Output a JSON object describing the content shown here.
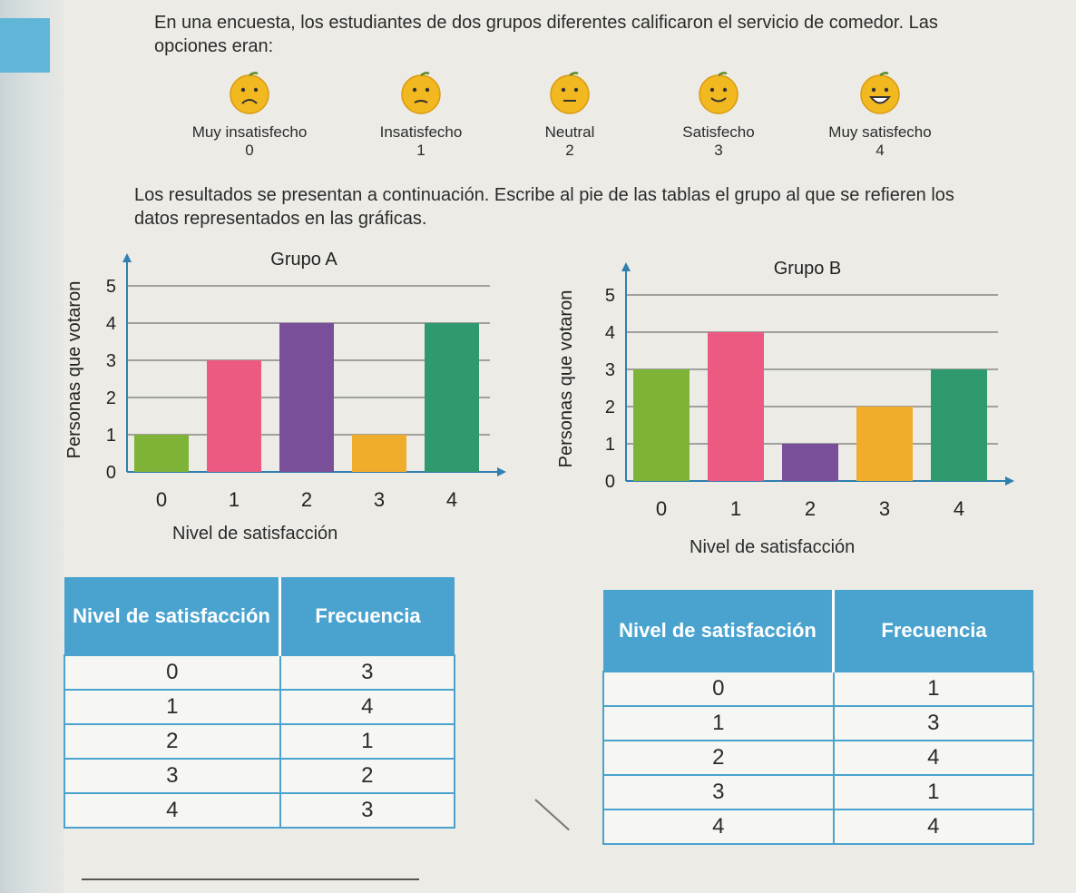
{
  "intro": "En una encuesta, los estudiantes de dos grupos diferentes calificaron el servicio de comedor. Las opciones eran:",
  "options": [
    {
      "label": "Muy insatisfecho",
      "value": "0",
      "icon": "very-sad-face-icon"
    },
    {
      "label": "Insatisfecho",
      "value": "1",
      "icon": "sad-face-icon"
    },
    {
      "label": "Neutral",
      "value": "2",
      "icon": "neutral-face-icon"
    },
    {
      "label": "Satisfecho",
      "value": "3",
      "icon": "happy-face-icon"
    },
    {
      "label": "Muy satisfecho",
      "value": "4",
      "icon": "very-happy-face-icon"
    }
  ],
  "instructions": "Los resultados se presentan a continuación. Escribe al pie de las tablas el grupo al que se refieren los datos representados en las gráficas.",
  "colors": {
    "green": "#7fb338",
    "pink": "#ec5a82",
    "purple": "#7a4f9a",
    "orange": "#f0ad2b",
    "teal": "#2f9a6e",
    "header": "#4aa3cf"
  },
  "chart_data": [
    {
      "type": "bar",
      "title": "Grupo A",
      "xlabel": "Nivel de satisfacción",
      "ylabel": "Personas que votaron",
      "categories": [
        "0",
        "1",
        "2",
        "3",
        "4"
      ],
      "values": [
        1,
        3,
        4,
        1,
        4
      ],
      "yticks": [
        "0",
        "1",
        "2",
        "3",
        "4",
        "5"
      ],
      "ylim": [
        0,
        5
      ],
      "grid": true
    },
    {
      "type": "bar",
      "title": "Grupo B",
      "xlabel": "Nivel de satisfacción",
      "ylabel": "Personas que votaron",
      "categories": [
        "0",
        "1",
        "2",
        "3",
        "4"
      ],
      "values": [
        3,
        4,
        1,
        2,
        3
      ],
      "yticks": [
        "0",
        "1",
        "2",
        "3",
        "4",
        "5"
      ],
      "ylim": [
        0,
        5
      ],
      "grid": true
    }
  ],
  "tables": [
    {
      "headers": [
        "Nivel de satisfacción",
        "Frecuencia"
      ],
      "rows": [
        [
          "0",
          "3"
        ],
        [
          "1",
          "4"
        ],
        [
          "2",
          "1"
        ],
        [
          "3",
          "2"
        ],
        [
          "4",
          "3"
        ]
      ]
    },
    {
      "headers": [
        "Nivel de satisfacción",
        "Frecuencia"
      ],
      "rows": [
        [
          "0",
          "1"
        ],
        [
          "1",
          "3"
        ],
        [
          "2",
          "4"
        ],
        [
          "3",
          "1"
        ],
        [
          "4",
          "4"
        ]
      ]
    }
  ]
}
